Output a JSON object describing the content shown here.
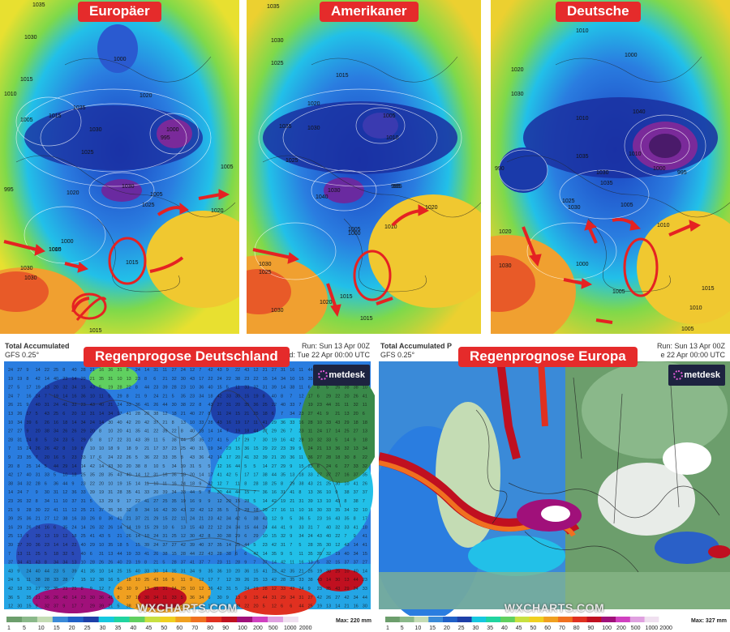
{
  "panels": {
    "europaeer": {
      "label": "Europäer"
    },
    "amerikaner": {
      "label": "Amerikaner"
    },
    "deutsche": {
      "label": "Deutsche"
    }
  },
  "rain_de": {
    "label": "Regenprogose Deutschland",
    "header_title": "Total Accumulated",
    "header_model": "GFS 0.25°",
    "run": "Run: Sun 13 Apr 00Z",
    "valid": "lid: Tue 22 Apr 00:00 UTC",
    "logo": "metdesk",
    "watermark": "WXCHARTS.COM",
    "max": "Max: 220 mm"
  },
  "rain_eu": {
    "label": "Regenprognose Europa",
    "header_title": "Total Accumulated P",
    "header_model": "GFS 0.25°",
    "run": "Run: Sun 13 Apr 00Z",
    "valid": "e 22 Apr 00:00 UTC",
    "logo": "metdesk",
    "watermark": "WXCHARTS.COM",
    "max": "Max: 327 mm"
  },
  "legend_ticks": [
    "1",
    "5",
    "10",
    "15",
    "20",
    "25",
    "30",
    "35",
    "40",
    "45",
    "50",
    "60",
    "70",
    "80",
    "90",
    "100",
    "200",
    "500",
    "1000",
    "2000"
  ],
  "legend_colors": [
    "#6c9e6c",
    "#8ab88a",
    "#c4dcb4",
    "#3a8ad8",
    "#2060c8",
    "#1e3fa8",
    "#15c8e0",
    "#20d4a0",
    "#60d060",
    "#c8e040",
    "#f0d020",
    "#f0a020",
    "#f07020",
    "#e03020",
    "#c01020",
    "#a0107a",
    "#d040c0",
    "#e0a0e0",
    "#f0e0f0",
    "#ffffff"
  ],
  "pressure_labels": {
    "europaeer": [
      "1035",
      "1030",
      "1005",
      "1015",
      "1000",
      "1010",
      "1035",
      "1030",
      "1015",
      "1020",
      "1000",
      "995",
      "1005",
      "1025",
      "995",
      "1020",
      "1030",
      "1000",
      "1005",
      "1030",
      "1010",
      "1015",
      "1025",
      "1030",
      "1015",
      "1020",
      "1005"
    ],
    "amerikaner": [
      "1035",
      "1030",
      "1025",
      "1015",
      "1020",
      "1035",
      "1030",
      "1005",
      "995",
      "1010",
      "1025",
      "1030",
      "1040",
      "995",
      "1020",
      "1000",
      "1030",
      "1025",
      "1010",
      "1015",
      "1005",
      "1030",
      "1020",
      "1015"
    ],
    "deutsche": [
      "1010",
      "1020",
      "1030",
      "1000",
      "1010",
      "1035",
      "1000",
      "995",
      "990",
      "1040",
      "1030",
      "1035",
      "1010",
      "1005",
      "1025",
      "1030",
      "1020",
      "1000",
      "1010",
      "1030",
      "1005",
      "1015",
      "1010",
      "1005"
    ]
  }
}
